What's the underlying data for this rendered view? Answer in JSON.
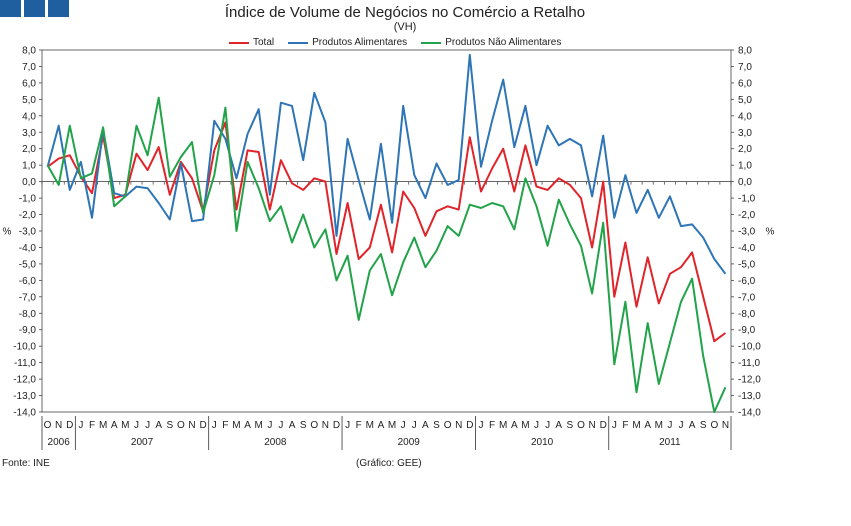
{
  "header": {
    "title": "Índice de Volume de Negócios no Comércio a Retalho",
    "subtitle": "(VH)"
  },
  "footer": {
    "source": "Fonte: INE",
    "credit": "(Gráfico: GEE)"
  },
  "chart_data": {
    "type": "line",
    "title": "Índice de Volume de Negócios no Comércio a Retalho",
    "subtitle": "(VH)",
    "ylabel_left": "%",
    "ylabel_right": "%",
    "ylim": [
      -14,
      8
    ],
    "y_step": 1,
    "y_ticks": [
      "8,0",
      "7,0",
      "6,0",
      "5,0",
      "4,0",
      "3,0",
      "2,0",
      "1,0",
      "0,0",
      "-1,0",
      "-2,0",
      "-3,0",
      "-4,0",
      "-5,0",
      "-6,0",
      "-7,0",
      "-8,0",
      "-9,0",
      "-10,0",
      "-11,0",
      "-12,0",
      "-13,0",
      "-14,0"
    ],
    "months": [
      "O",
      "N",
      "D",
      "J",
      "F",
      "M",
      "A",
      "M",
      "J",
      "J",
      "A",
      "S",
      "O",
      "N",
      "D",
      "J",
      "F",
      "M",
      "A",
      "M",
      "J",
      "J",
      "A",
      "S",
      "O",
      "N",
      "D",
      "J",
      "F",
      "M",
      "A",
      "M",
      "J",
      "J",
      "A",
      "S",
      "O",
      "N",
      "D",
      "J",
      "F",
      "M",
      "A",
      "M",
      "J",
      "J",
      "A",
      "S",
      "O",
      "N",
      "D",
      "J",
      "F",
      "M",
      "A",
      "M",
      "J",
      "J",
      "A",
      "S",
      "O",
      "N"
    ],
    "years": [
      {
        "label": "2006",
        "start": 0,
        "count": 3
      },
      {
        "label": "2007",
        "start": 3,
        "count": 12
      },
      {
        "label": "2008",
        "start": 15,
        "count": 12
      },
      {
        "label": "2009",
        "start": 27,
        "count": 12
      },
      {
        "label": "2010",
        "start": 39,
        "count": 12
      },
      {
        "label": "2011",
        "start": 51,
        "count": 11
      }
    ],
    "legend_position": "top",
    "series": [
      {
        "name": "Total",
        "color": "#e0242a",
        "values": [
          0.9,
          1.4,
          1.6,
          0.3,
          -0.7,
          2.8,
          -1.0,
          -0.8,
          1.7,
          0.7,
          2.1,
          -0.8,
          1.2,
          0.2,
          -1.8,
          1.9,
          3.6,
          -1.7,
          1.9,
          1.8,
          -1.7,
          1.3,
          -0.1,
          -0.5,
          0.2,
          0.0,
          -4.4,
          -1.3,
          -4.7,
          -4.0,
          -1.4,
          -4.3,
          -0.6,
          -1.6,
          -3.3,
          -1.8,
          -1.5,
          -1.7,
          2.7,
          -0.6,
          0.8,
          2.0,
          -0.6,
          2.2,
          -0.3,
          -0.5,
          0.2,
          -0.2,
          -1.0,
          -4.0,
          0.0,
          -7.0,
          -3.7,
          -7.6,
          -4.6,
          -7.4,
          -5.6,
          -5.2,
          -4.3,
          -7.0,
          -9.7,
          -9.2
        ]
      },
      {
        "name": "Produtos Alimentares",
        "color": "#2e75b6",
        "values": [
          0.9,
          3.4,
          -0.5,
          1.2,
          -2.2,
          3.2,
          -0.7,
          -0.9,
          -0.3,
          -0.4,
          -1.3,
          -2.3,
          1.1,
          -2.4,
          -2.3,
          3.7,
          2.6,
          0.2,
          2.9,
          4.4,
          -0.8,
          4.8,
          4.6,
          1.3,
          5.4,
          3.6,
          -3.3,
          2.6,
          0.1,
          -2.3,
          2.3,
          -2.5,
          4.6,
          0.4,
          -1.0,
          1.1,
          -0.2,
          0.1,
          7.7,
          0.9,
          3.7,
          6.2,
          2.1,
          4.6,
          1.0,
          3.4,
          2.2,
          2.6,
          2.2,
          -0.9,
          2.8,
          -2.2,
          0.4,
          -1.9,
          -0.5,
          -2.2,
          -0.9,
          -2.7,
          -2.6,
          -3.4,
          -4.7,
          -5.6
        ]
      },
      {
        "name": "Produtos Não Alimentares",
        "color": "#22a34a",
        "values": [
          1.0,
          -0.2,
          3.4,
          0.2,
          0.5,
          3.3,
          -1.5,
          -0.9,
          3.4,
          1.6,
          5.1,
          0.3,
          1.5,
          2.4,
          -1.9,
          0.4,
          4.5,
          -3.0,
          1.2,
          -0.4,
          -2.4,
          -1.5,
          -3.7,
          -2.0,
          -4.0,
          -2.9,
          -6.0,
          -4.5,
          -8.4,
          -5.4,
          -4.4,
          -6.9,
          -4.9,
          -3.4,
          -5.2,
          -4.2,
          -2.7,
          -3.3,
          -1.4,
          -1.6,
          -1.3,
          -1.5,
          -2.9,
          0.2,
          -1.5,
          -3.9,
          -1.1,
          -2.6,
          -3.9,
          -6.8,
          -2.5,
          -11.1,
          -7.3,
          -12.8,
          -8.6,
          -12.3,
          -9.8,
          -7.3,
          -5.9,
          -10.6,
          -14.0,
          -12.5
        ]
      }
    ]
  }
}
